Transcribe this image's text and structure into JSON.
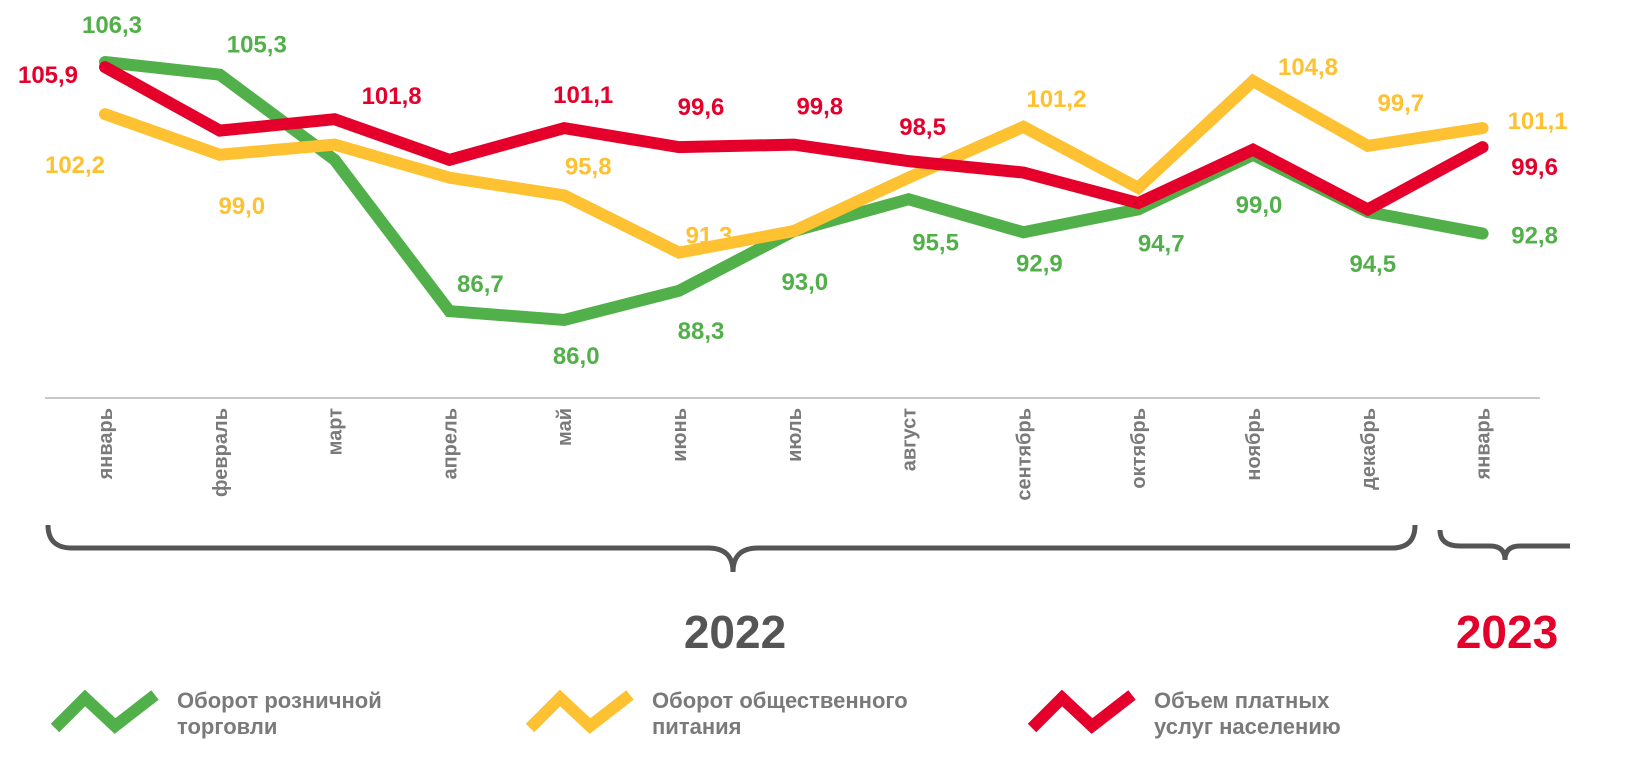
{
  "chart_data": {
    "type": "line",
    "categories": [
      "январь",
      "февраль",
      "март",
      "апрель",
      "май",
      "июнь",
      "июль",
      "август",
      "сентябрь",
      "октябрь",
      "ноябрь",
      "декабрь",
      "январь"
    ],
    "series": [
      {
        "name": "Оборот розничной торговли",
        "color": "#52b04a",
        "values": [
          106.3,
          105.3,
          98.6,
          86.7,
          86.0,
          88.3,
          93.0,
          95.5,
          92.9,
          94.7,
          99.0,
          94.5,
          92.8
        ],
        "value_labels": [
          "106,3",
          "105,3",
          null,
          "86,7",
          "86,0",
          "88,3",
          "93,0",
          "95,5",
          "92,9",
          "94,7",
          "99,0",
          "94,5",
          "92,8"
        ]
      },
      {
        "name": "Оборот общественного питания",
        "color": "#fdc132",
        "values": [
          102.2,
          99.0,
          99.8,
          97.2,
          95.8,
          91.3,
          93.0,
          97.2,
          101.2,
          96.4,
          104.8,
          99.7,
          101.1
        ],
        "value_labels": [
          "102,2",
          "99,0",
          null,
          null,
          "95,8",
          "91,3",
          null,
          null,
          "101,2",
          null,
          "104,8",
          "99,7",
          "101,1"
        ]
      },
      {
        "name": "Объем платных услуг населению",
        "color": "#e4002b",
        "values": [
          105.9,
          100.9,
          101.8,
          98.6,
          101.1,
          99.6,
          99.8,
          98.5,
          97.6,
          95.2,
          99.4,
          94.7,
          99.6
        ],
        "value_labels": [
          "105,9",
          null,
          "101,8",
          null,
          "101,1",
          "99,6",
          "99,8",
          "98,5",
          null,
          null,
          null,
          null,
          "99,6"
        ]
      }
    ],
    "period_labels": [
      "2022",
      "2023"
    ]
  }
}
